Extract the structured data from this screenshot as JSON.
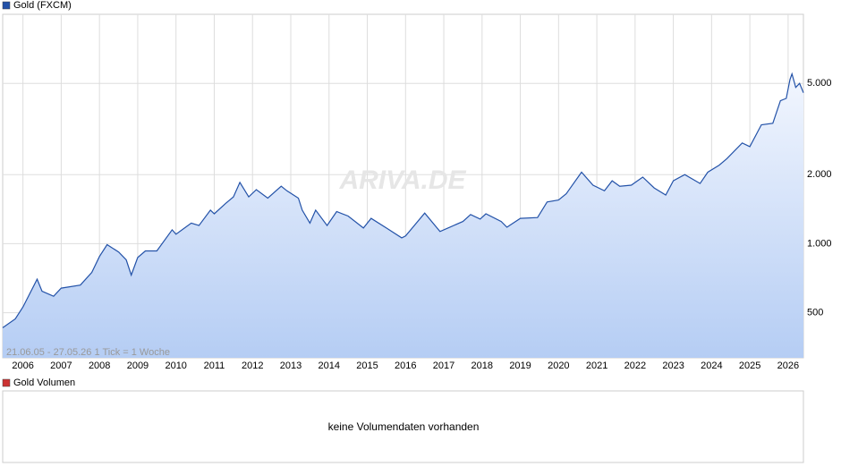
{
  "chart_data": {
    "type": "line",
    "ylog": true,
    "grid": true,
    "watermark": "ARIVA.DE",
    "info": "21.06.05 - 27.05.26   1 Tick = 1 Woche",
    "xlim": [
      2005.47,
      2026.4
    ],
    "xticks": [
      2006,
      2007,
      2008,
      2009,
      2010,
      2011,
      2012,
      2013,
      2014,
      2015,
      2016,
      2017,
      2018,
      2019,
      2020,
      2021,
      2022,
      2023,
      2024,
      2025,
      2026
    ],
    "ylim": [
      318,
      10000
    ],
    "yticks": [
      {
        "value": 500,
        "label": "500"
      },
      {
        "value": 1000,
        "label": "1.000"
      },
      {
        "value": 2000,
        "label": "2.000"
      },
      {
        "value": 5000,
        "label": "5.000"
      }
    ],
    "series": [
      {
        "name": "Gold (FXCM)",
        "color": "#2352a8",
        "x": [
          2005.47,
          2005.8,
          2006.0,
          2006.37,
          2006.5,
          2006.8,
          2007.0,
          2007.5,
          2007.8,
          2008.0,
          2008.2,
          2008.5,
          2008.7,
          2008.83,
          2009.0,
          2009.2,
          2009.5,
          2009.9,
          2010.0,
          2010.4,
          2010.6,
          2010.9,
          2011.0,
          2011.3,
          2011.5,
          2011.67,
          2011.9,
          2012.1,
          2012.4,
          2012.75,
          2012.9,
          2013.2,
          2013.3,
          2013.5,
          2013.65,
          2013.95,
          2014.2,
          2014.5,
          2014.9,
          2015.1,
          2015.5,
          2015.9,
          2016.0,
          2016.5,
          2016.9,
          2017.5,
          2017.7,
          2017.95,
          2018.1,
          2018.5,
          2018.65,
          2019.0,
          2019.45,
          2019.7,
          2020.0,
          2020.2,
          2020.6,
          2020.9,
          2021.2,
          2021.4,
          2021.6,
          2021.9,
          2022.2,
          2022.5,
          2022.8,
          2023.0,
          2023.3,
          2023.7,
          2023.9,
          2024.2,
          2024.4,
          2024.8,
          2025.0,
          2025.3,
          2025.6,
          2025.8,
          2025.95,
          2026.05,
          2026.1,
          2026.2,
          2026.3,
          2026.4
        ],
        "values": [
          430,
          470,
          530,
          700,
          620,
          590,
          640,
          660,
          750,
          880,
          990,
          920,
          850,
          730,
          870,
          930,
          930,
          1150,
          1100,
          1230,
          1200,
          1400,
          1350,
          1500,
          1600,
          1850,
          1600,
          1720,
          1580,
          1780,
          1700,
          1580,
          1400,
          1230,
          1400,
          1200,
          1380,
          1320,
          1170,
          1290,
          1170,
          1060,
          1080,
          1360,
          1130,
          1250,
          1340,
          1280,
          1350,
          1250,
          1180,
          1290,
          1300,
          1520,
          1550,
          1650,
          2050,
          1800,
          1700,
          1880,
          1780,
          1800,
          1950,
          1750,
          1630,
          1880,
          2000,
          1830,
          2050,
          2200,
          2350,
          2750,
          2650,
          3300,
          3350,
          4200,
          4300,
          5200,
          5500,
          4800,
          5000,
          4550
        ]
      }
    ]
  },
  "volume_panel": {
    "legend": "Gold Volumen",
    "color": "#cc3333",
    "message": "keine Volumendaten vorhanden"
  }
}
